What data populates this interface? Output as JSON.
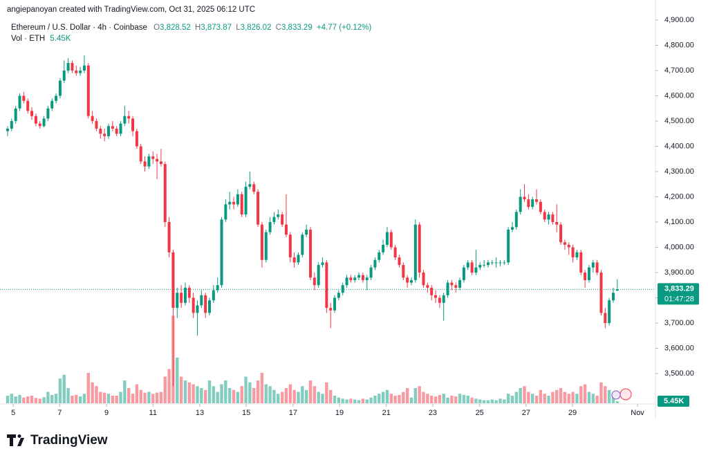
{
  "chart_data": {
    "type": "candlestick",
    "header": {
      "credit": "angiepanoyan created with TradingView.com, Oct 31, 2025 06:12 UTC",
      "symbol": "Ethereum / U.S. Dollar · 4h · Coinbase",
      "o": "O",
      "o_value": "3,828.52",
      "h": "H",
      "h_value": "3,873.87",
      "l": "L",
      "l_value": "3,826.02",
      "c": "C",
      "c_value": "3,833.29",
      "change": "+4.77 (+0.12%)",
      "volume_title": "Vol · ETH",
      "volume_value": "5.45K"
    },
    "up_color": "#089981",
    "down_color": "#f23645",
    "ohlc": [
      [
        4460,
        4480,
        4440,
        4470
      ],
      [
        4470,
        4510,
        4460,
        4500
      ],
      [
        4500,
        4560,
        4490,
        4550
      ],
      [
        4550,
        4610,
        4540,
        4600
      ],
      [
        4600,
        4615,
        4570,
        4580
      ],
      [
        4580,
        4590,
        4530,
        4540
      ],
      [
        4540,
        4555,
        4505,
        4520
      ],
      [
        4520,
        4530,
        4480,
        4490
      ],
      [
        4490,
        4500,
        4470,
        4480
      ],
      [
        4480,
        4520,
        4475,
        4510
      ],
      [
        4510,
        4560,
        4500,
        4550
      ],
      [
        4550,
        4590,
        4540,
        4580
      ],
      [
        4580,
        4610,
        4570,
        4600
      ],
      [
        4600,
        4670,
        4590,
        4660
      ],
      [
        4660,
        4740,
        4650,
        4700
      ],
      [
        4700,
        4750,
        4690,
        4730
      ],
      [
        4730,
        4740,
        4690,
        4700
      ],
      [
        4700,
        4720,
        4680,
        4690
      ],
      [
        4690,
        4715,
        4680,
        4700
      ],
      [
        4700,
        4760,
        4690,
        4720
      ],
      [
        4720,
        4730,
        4510,
        4520
      ],
      [
        4520,
        4540,
        4490,
        4500
      ],
      [
        4500,
        4510,
        4460,
        4470
      ],
      [
        4470,
        4480,
        4430,
        4450
      ],
      [
        4450,
        4470,
        4420,
        4440
      ],
      [
        4440,
        4490,
        4430,
        4480
      ],
      [
        4480,
        4500,
        4460,
        4470
      ],
      [
        4470,
        4480,
        4440,
        4450
      ],
      [
        4450,
        4500,
        4440,
        4490
      ],
      [
        4490,
        4560,
        4480,
        4520
      ],
      [
        4520,
        4540,
        4490,
        4510
      ],
      [
        4510,
        4520,
        4440,
        4460
      ],
      [
        4460,
        4470,
        4390,
        4400
      ],
      [
        4400,
        4410,
        4330,
        4340
      ],
      [
        4340,
        4360,
        4300,
        4320
      ],
      [
        4320,
        4370,
        4310,
        4360
      ],
      [
        4360,
        4380,
        4330,
        4350
      ],
      [
        4350,
        4370,
        4270,
        4340
      ],
      [
        4340,
        4390,
        4320,
        4330
      ],
      [
        4330,
        4340,
        4080,
        4100
      ],
      [
        4100,
        4120,
        3960,
        3980
      ],
      [
        3980,
        3990,
        3450,
        3760
      ],
      [
        3760,
        3840,
        3720,
        3820
      ],
      [
        3820,
        3850,
        3760,
        3780
      ],
      [
        3780,
        3860,
        3770,
        3840
      ],
      [
        3840,
        3850,
        3780,
        3800
      ],
      [
        3800,
        3820,
        3720,
        3740
      ],
      [
        3740,
        3790,
        3650,
        3770
      ],
      [
        3770,
        3830,
        3760,
        3810
      ],
      [
        3810,
        3820,
        3720,
        3740
      ],
      [
        3740,
        3800,
        3730,
        3790
      ],
      [
        3790,
        3850,
        3780,
        3830
      ],
      [
        3830,
        3880,
        3820,
        3850
      ],
      [
        3850,
        4120,
        3840,
        4110
      ],
      [
        4110,
        4190,
        4100,
        4170
      ],
      [
        4170,
        4220,
        4150,
        4180
      ],
      [
        4180,
        4200,
        4150,
        4170
      ],
      [
        4170,
        4230,
        4160,
        4210
      ],
      [
        4210,
        4220,
        4120,
        4130
      ],
      [
        4130,
        4260,
        4120,
        4240
      ],
      [
        4240,
        4300,
        4230,
        4250
      ],
      [
        4250,
        4260,
        4210,
        4220
      ],
      [
        4220,
        4230,
        4080,
        4090
      ],
      [
        4090,
        4100,
        3920,
        3950
      ],
      [
        3950,
        4070,
        3940,
        4060
      ],
      [
        4060,
        4120,
        4050,
        4100
      ],
      [
        4100,
        4140,
        4090,
        4120
      ],
      [
        4120,
        4150,
        4110,
        4130
      ],
      [
        4130,
        4140,
        4080,
        4090
      ],
      [
        4090,
        4210,
        4040,
        4050
      ],
      [
        4050,
        4060,
        3940,
        3960
      ],
      [
        3960,
        3980,
        3920,
        3940
      ],
      [
        3940,
        3980,
        3930,
        3970
      ],
      [
        3970,
        4060,
        3960,
        4050
      ],
      [
        4050,
        4090,
        4040,
        4070
      ],
      [
        4070,
        4080,
        3870,
        3880
      ],
      [
        3880,
        3900,
        3830,
        3850
      ],
      [
        3850,
        3940,
        3840,
        3930
      ],
      [
        3930,
        3960,
        3920,
        3940
      ],
      [
        3940,
        3950,
        3740,
        3760
      ],
      [
        3760,
        3780,
        3680,
        3750
      ],
      [
        3750,
        3810,
        3740,
        3800
      ],
      [
        3800,
        3830,
        3790,
        3820
      ],
      [
        3820,
        3860,
        3810,
        3850
      ],
      [
        3850,
        3890,
        3840,
        3880
      ],
      [
        3880,
        3890,
        3860,
        3870
      ],
      [
        3870,
        3890,
        3860,
        3880
      ],
      [
        3880,
        3900,
        3870,
        3890
      ],
      [
        3890,
        3900,
        3860,
        3870
      ],
      [
        3870,
        3890,
        3830,
        3880
      ],
      [
        3880,
        3930,
        3870,
        3920
      ],
      [
        3920,
        3960,
        3910,
        3950
      ],
      [
        3950,
        3990,
        3940,
        3980
      ],
      [
        3980,
        4030,
        3970,
        4010
      ],
      [
        4010,
        4080,
        4000,
        4060
      ],
      [
        4060,
        4070,
        3990,
        4000
      ],
      [
        4000,
        4010,
        3950,
        3960
      ],
      [
        3960,
        3970,
        3920,
        3930
      ],
      [
        3930,
        3940,
        3870,
        3880
      ],
      [
        3880,
        3890,
        3840,
        3860
      ],
      [
        3860,
        3880,
        3850,
        3870
      ],
      [
        3870,
        4110,
        3860,
        4090
      ],
      [
        4090,
        4100,
        3880,
        3900
      ],
      [
        3900,
        3910,
        3840,
        3850
      ],
      [
        3850,
        3860,
        3820,
        3840
      ],
      [
        3840,
        3850,
        3790,
        3810
      ],
      [
        3810,
        3830,
        3780,
        3800
      ],
      [
        3800,
        3810,
        3760,
        3780
      ],
      [
        3780,
        3820,
        3710,
        3810
      ],
      [
        3810,
        3870,
        3800,
        3860
      ],
      [
        3860,
        3870,
        3830,
        3850
      ],
      [
        3850,
        3860,
        3820,
        3840
      ],
      [
        3840,
        3880,
        3830,
        3870
      ],
      [
        3870,
        3930,
        3860,
        3920
      ],
      [
        3920,
        3950,
        3910,
        3940
      ],
      [
        3940,
        3950,
        3890,
        3900
      ],
      [
        3900,
        3990,
        3890,
        3920
      ],
      [
        3920,
        3940,
        3910,
        3930
      ],
      [
        3930,
        3950,
        3920,
        3930
      ],
      [
        3930,
        3950,
        3920,
        3940
      ],
      [
        3940,
        3950,
        3930,
        3940
      ],
      [
        3940,
        3960,
        3920,
        3940
      ],
      [
        3940,
        3950,
        3925,
        3940
      ],
      [
        3940,
        3950,
        3930,
        3940
      ],
      [
        3940,
        4080,
        3930,
        4070
      ],
      [
        4070,
        4100,
        4060,
        4080
      ],
      [
        4080,
        4150,
        4070,
        4140
      ],
      [
        4140,
        4230,
        4130,
        4200
      ],
      [
        4200,
        4250,
        4180,
        4190
      ],
      [
        4190,
        4210,
        4150,
        4160
      ],
      [
        4160,
        4200,
        4150,
        4190
      ],
      [
        4190,
        4230,
        4170,
        4180
      ],
      [
        4180,
        4190,
        4130,
        4140
      ],
      [
        4140,
        4150,
        4100,
        4110
      ],
      [
        4110,
        4140,
        4090,
        4130
      ],
      [
        4130,
        4140,
        4090,
        4100
      ],
      [
        4100,
        4170,
        4060,
        4090
      ],
      [
        4090,
        4100,
        4010,
        4020
      ],
      [
        4020,
        4030,
        3990,
        4010
      ],
      [
        4010,
        4020,
        3970,
        4000
      ],
      [
        4000,
        4010,
        3940,
        3960
      ],
      [
        3960,
        3990,
        3950,
        3980
      ],
      [
        3980,
        3990,
        3890,
        3900
      ],
      [
        3900,
        3910,
        3840,
        3870
      ],
      [
        3870,
        3930,
        3860,
        3920
      ],
      [
        3920,
        3950,
        3900,
        3940
      ],
      [
        3940,
        3950,
        3890,
        3900
      ],
      [
        3900,
        3910,
        3730,
        3740
      ],
      [
        3740,
        3760,
        3680,
        3700
      ],
      [
        3700,
        3800,
        3690,
        3790
      ],
      [
        3790,
        3840,
        3780,
        3820
      ],
      [
        3828.52,
        3873.87,
        3826.02,
        3833.29
      ]
    ],
    "volume": [
      20,
      25,
      18,
      22,
      15,
      18,
      20,
      14,
      12,
      16,
      30,
      22,
      25,
      65,
      75,
      40,
      20,
      22,
      18,
      25,
      80,
      55,
      45,
      30,
      28,
      25,
      20,
      20,
      30,
      60,
      40,
      25,
      50,
      35,
      28,
      30,
      25,
      28,
      30,
      70,
      90,
      230,
      120,
      70,
      60,
      55,
      50,
      45,
      40,
      35,
      60,
      45,
      30,
      50,
      60,
      40,
      35,
      30,
      45,
      70,
      55,
      40,
      60,
      80,
      50,
      45,
      35,
      25,
      30,
      40,
      50,
      35,
      30,
      45,
      35,
      60,
      45,
      30,
      25,
      55,
      35,
      20,
      15,
      12,
      10,
      12,
      10,
      8,
      12,
      10,
      15,
      20,
      25,
      30,
      35,
      25,
      20,
      22,
      30,
      40,
      15,
      40,
      45,
      30,
      25,
      20,
      18,
      22,
      25,
      15,
      20,
      18,
      25,
      22,
      20,
      15,
      12,
      10,
      8,
      8,
      10,
      8,
      12,
      10,
      25,
      20,
      30,
      40,
      45,
      30,
      25,
      20,
      35,
      25,
      20,
      30,
      35,
      40,
      30,
      25,
      30,
      25,
      45,
      50,
      30,
      25,
      20,
      55,
      45,
      35,
      20,
      5.45
    ],
    "volume_label": "5.45K",
    "ylim": [
      3382.2,
      4979.5
    ],
    "vlim": [
      0,
      1000
    ],
    "yticks": [
      {
        "value": 3500,
        "label": "3,500.00"
      },
      {
        "value": 3600,
        "label": "3,600.00"
      },
      {
        "value": 3700,
        "label": "3,700.00"
      },
      {
        "value": 3800,
        "label": "3,800.00"
      },
      {
        "value": 3900,
        "label": "3,900.00"
      },
      {
        "value": 4000,
        "label": "4,000.00"
      },
      {
        "value": 4100,
        "label": "4,100.00"
      },
      {
        "value": 4200,
        "label": "4,200.00"
      },
      {
        "value": 4300,
        "label": "4,300.00"
      },
      {
        "value": 4400,
        "label": "4,400.00"
      },
      {
        "value": 4500,
        "label": "4,500.00"
      },
      {
        "value": 4600,
        "label": "4,600.00"
      },
      {
        "value": 4700,
        "label": "4,700.00"
      },
      {
        "value": 4800,
        "label": "4,800.00"
      },
      {
        "value": 4900,
        "label": "4,900.00"
      }
    ],
    "xticks": [
      {
        "value": 1.4,
        "label": "5"
      },
      {
        "value": 12.9,
        "label": "7"
      },
      {
        "value": 24.5,
        "label": "9"
      },
      {
        "value": 36.0,
        "label": "11"
      },
      {
        "value": 47.6,
        "label": "13"
      },
      {
        "value": 59.1,
        "label": "15"
      },
      {
        "value": 70.7,
        "label": "17"
      },
      {
        "value": 82.2,
        "label": "19"
      },
      {
        "value": 93.8,
        "label": "21"
      },
      {
        "value": 105.3,
        "label": "23"
      },
      {
        "value": 116.9,
        "label": "25"
      },
      {
        "value": 128.4,
        "label": "27"
      },
      {
        "value": 139.9,
        "label": "29"
      },
      {
        "value": 156.0,
        "label": "Nov"
      }
    ],
    "last_price": {
      "value": 3833.29,
      "label": "3,833.29"
    },
    "countdown": "01:47:28",
    "brand": "TradingView"
  }
}
